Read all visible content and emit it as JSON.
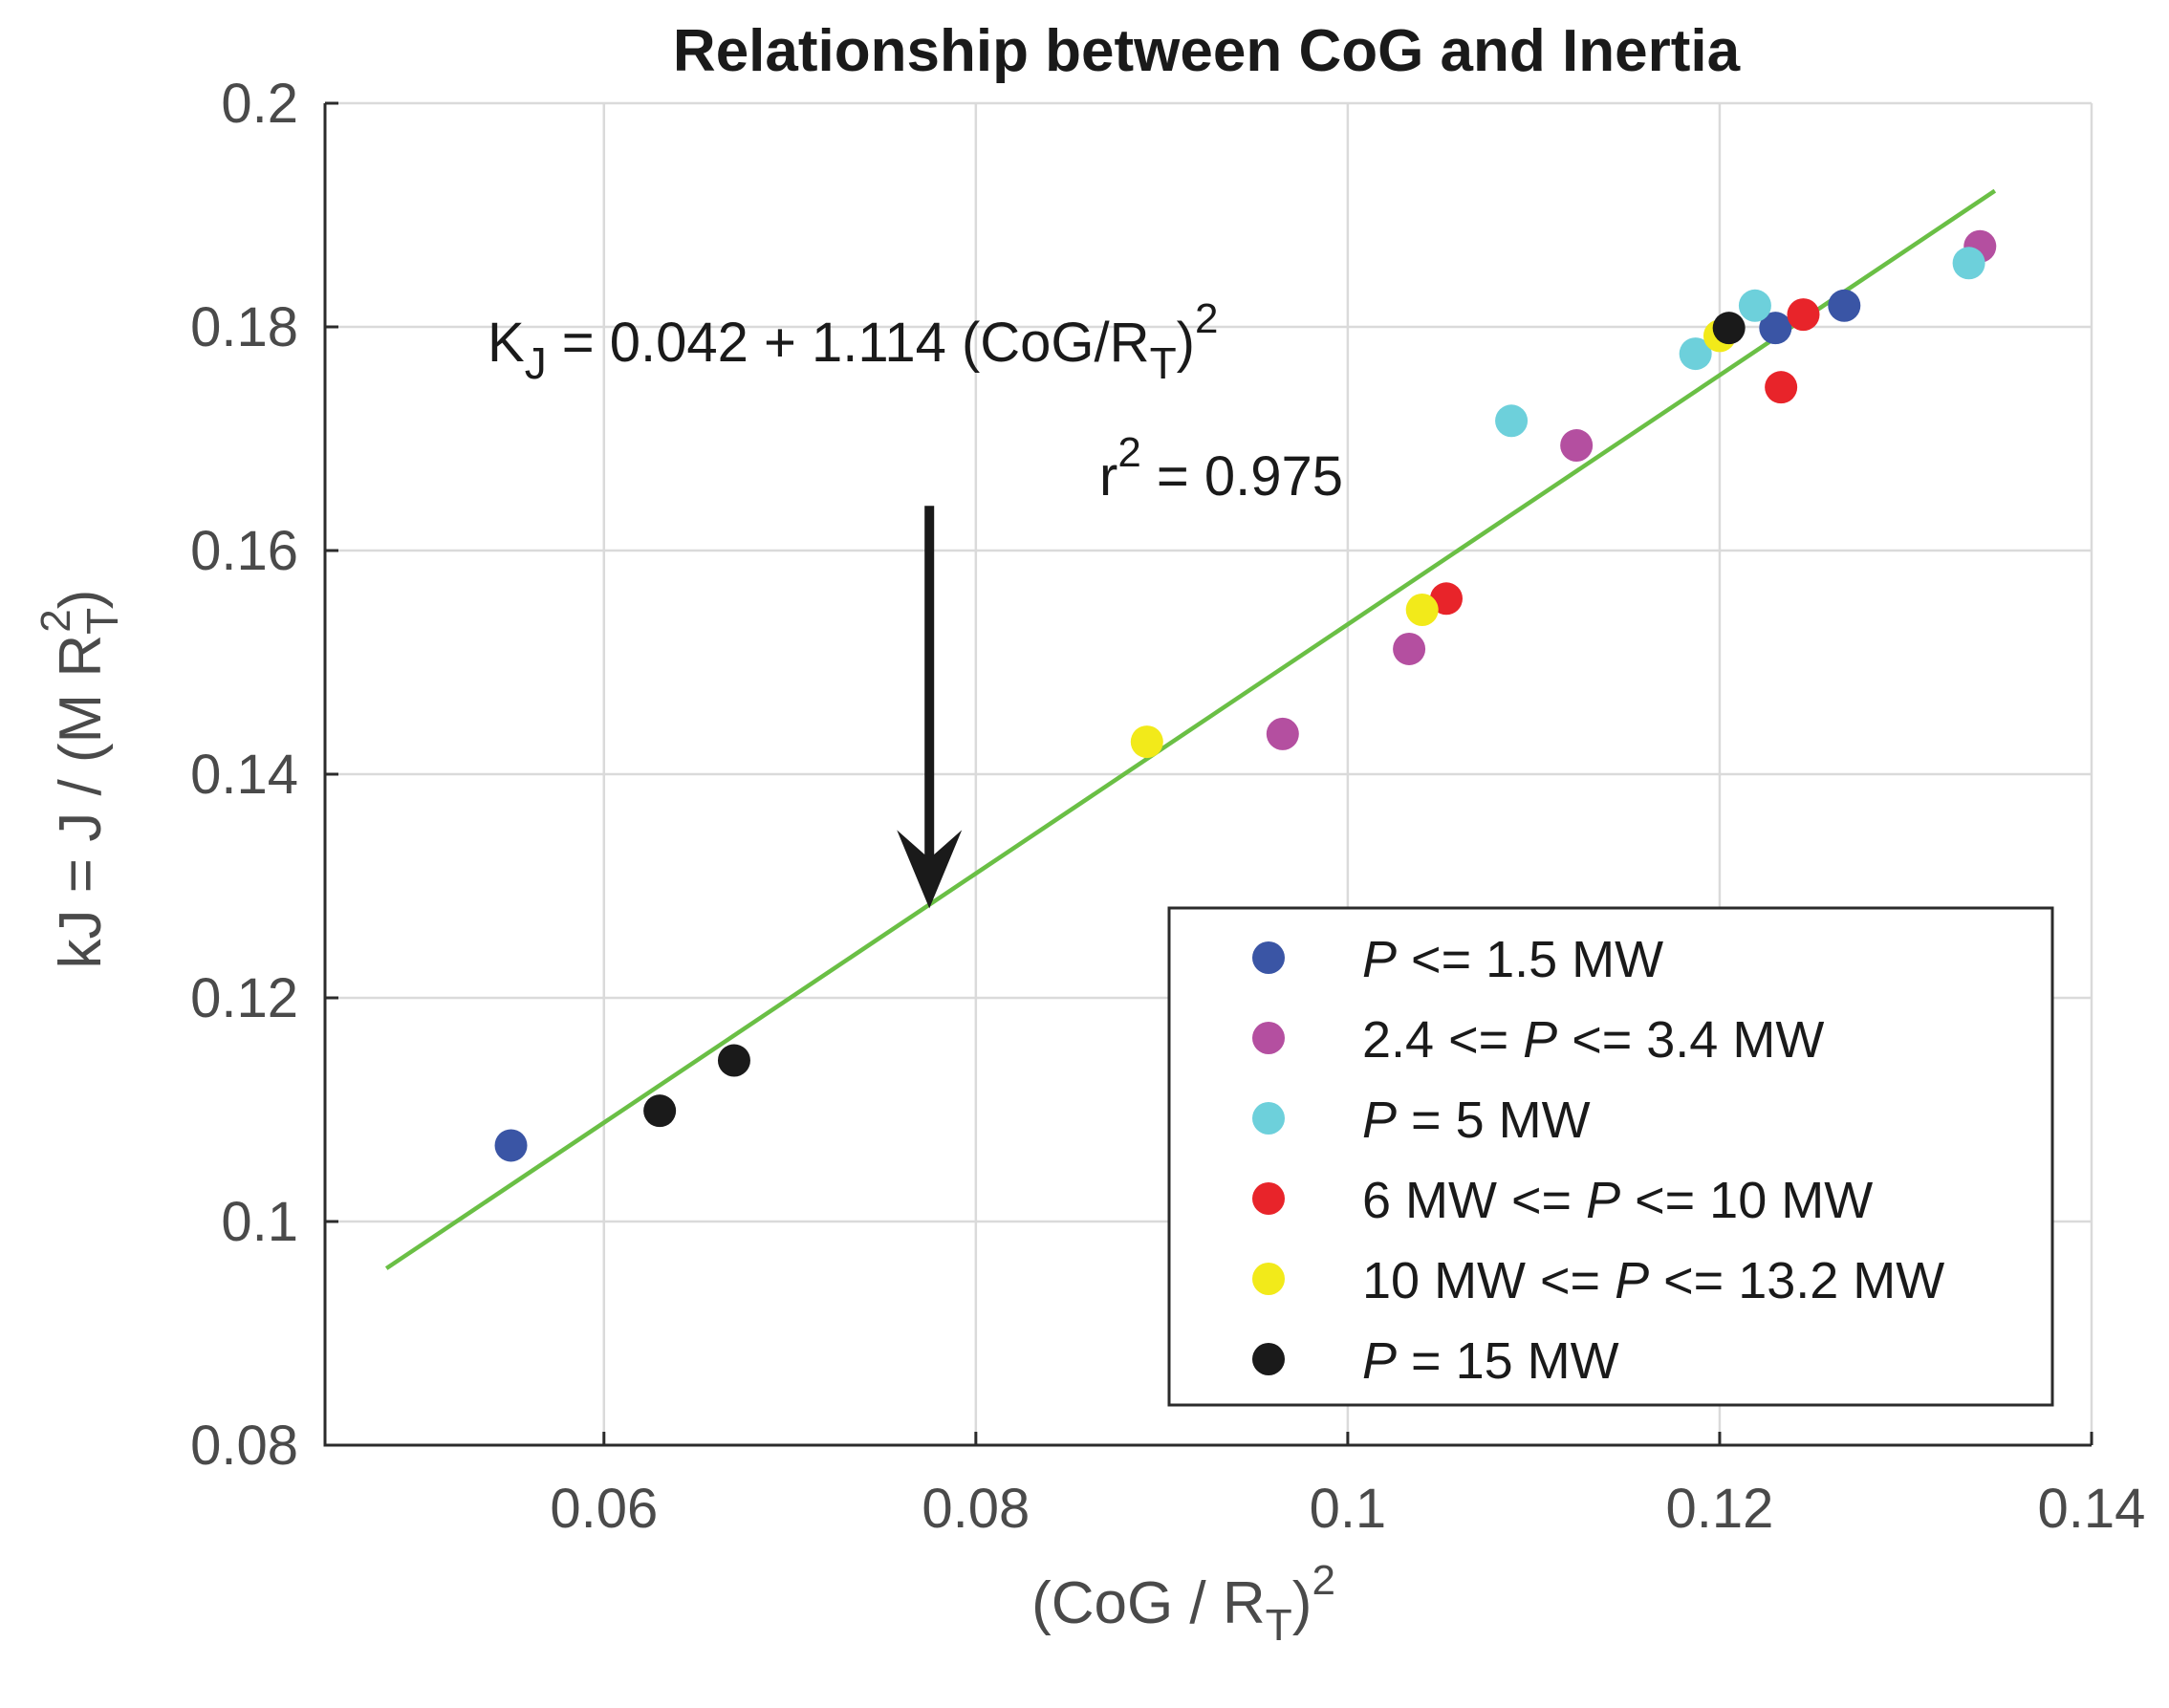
{
  "chart_data": {
    "type": "scatter",
    "title": "Relationship between CoG and Inertia",
    "xlabel": {
      "main": "(CoG / R",
      "sub": "T",
      "close": ")",
      "sup": "2"
    },
    "ylabel": {
      "main": "kJ = J / (M R",
      "sub": "T",
      "sup": "2",
      "close": ")"
    },
    "xlim": [
      0.045,
      0.14
    ],
    "ylim": [
      0.08,
      0.2
    ],
    "xticks": [
      0.06,
      0.08,
      0.1,
      0.12,
      0.14
    ],
    "xtick_labels": [
      "0.06",
      "0.08",
      "0.1",
      "0.12",
      "0.14"
    ],
    "yticks": [
      0.08,
      0.1,
      0.12,
      0.14,
      0.16,
      0.18,
      0.2
    ],
    "ytick_labels": [
      "0.08",
      "0.1",
      "0.12",
      "0.14",
      "0.16",
      "0.18",
      "0.2"
    ],
    "grid": true,
    "fit": {
      "intercept": 0.042,
      "slope": 1.114,
      "x_range": [
        0.0483,
        0.1348
      ],
      "color": "#6abf45",
      "equation": {
        "k": "K",
        "k_sub": "J",
        "rhs": " = 0.042 + 1.114 (CoG/R",
        "rhs_sub": "T",
        "close": ")",
        "sup": "2"
      },
      "r2": {
        "r": "r",
        "sup": "2",
        "rest": " = 0.975"
      }
    },
    "arrow": {
      "x": 0.0775,
      "y_from": 0.164,
      "y_to": 0.128,
      "color": "#1a1a1a"
    },
    "legend_position": "bottom-right",
    "series": [
      {
        "name": "P <= 1.5 MW",
        "legend": [
          {
            "t": "P",
            "i": true
          },
          {
            "t": " <= 1.5 MW"
          }
        ],
        "color": "#3a55a5",
        "points": [
          [
            0.055,
            0.1068
          ],
          [
            0.123,
            0.1799
          ],
          [
            0.1267,
            0.1819
          ]
        ]
      },
      {
        "name": "2.4 <= P <= 3.4 MW",
        "legend": [
          {
            "t": "2.4 <= "
          },
          {
            "t": "P",
            "i": true
          },
          {
            "t": " <= 3.4 MW"
          }
        ],
        "color": "#b44fa0",
        "points": [
          [
            0.0965,
            0.1436
          ],
          [
            0.1033,
            0.1512
          ],
          [
            0.1123,
            0.1694
          ],
          [
            0.134,
            0.1872
          ]
        ]
      },
      {
        "name": "P = 5 MW",
        "legend": [
          {
            "t": "P",
            "i": true
          },
          {
            "t": " = 5 MW"
          }
        ],
        "color": "#6dd0db",
        "points": [
          [
            0.1088,
            0.1716
          ],
          [
            0.1187,
            0.1776
          ],
          [
            0.1219,
            0.1819
          ],
          [
            0.1334,
            0.1857
          ]
        ]
      },
      {
        "name": "6 MW <= P <= 10 MW",
        "legend": [
          {
            "t": "6 MW <= "
          },
          {
            "t": "P",
            "i": true
          },
          {
            "t": " <= 10 MW"
          }
        ],
        "color": "#e8242a",
        "points": [
          [
            0.1053,
            0.1557
          ],
          [
            0.1233,
            0.1746
          ],
          [
            0.1245,
            0.1811
          ]
        ]
      },
      {
        "name": "10 MW <= P <= 13.2 MW",
        "legend": [
          {
            "t": "10 MW <= "
          },
          {
            "t": "P",
            "i": true
          },
          {
            "t": " <= 13.2 MW"
          }
        ],
        "color": "#f2ea1a",
        "points": [
          [
            0.0892,
            0.1429
          ],
          [
            0.104,
            0.1547
          ],
          [
            0.12,
            0.1792
          ]
        ]
      },
      {
        "name": "P = 15 MW",
        "legend": [
          {
            "t": "P",
            "i": true
          },
          {
            "t": " = 15 MW"
          }
        ],
        "color": "#1a1a1a",
        "points": [
          [
            0.063,
            0.1099
          ],
          [
            0.067,
            0.1144
          ],
          [
            0.1205,
            0.1799
          ]
        ]
      }
    ]
  }
}
